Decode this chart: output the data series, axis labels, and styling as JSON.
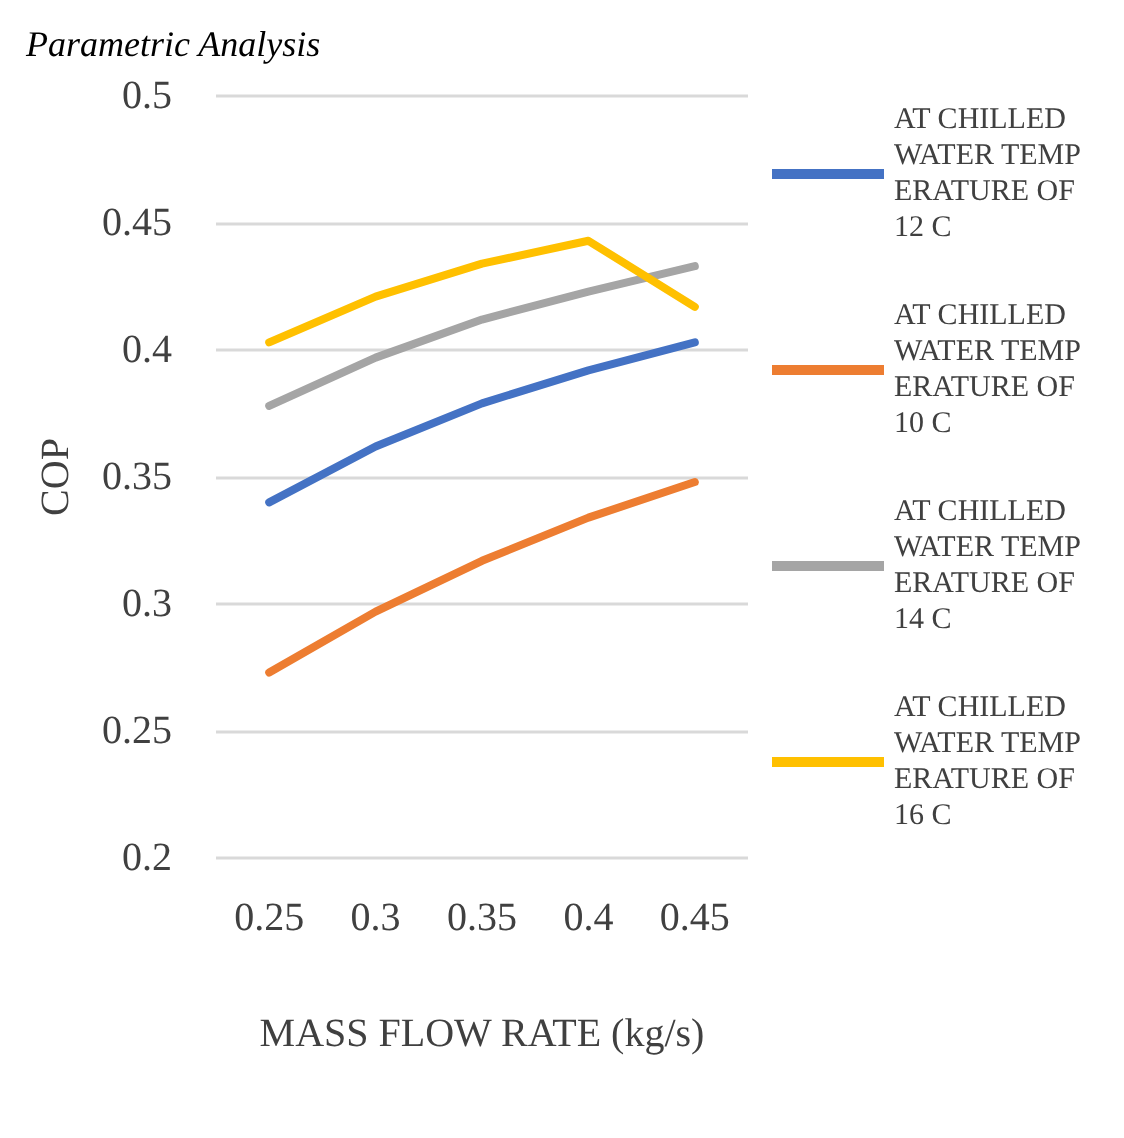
{
  "chart_data": {
    "type": "line",
    "title": "Parametric Analysis",
    "xlabel": "MASS FLOW RATE (kg/s)",
    "ylabel": "COP",
    "categories": [
      "0.25",
      "0.3",
      "0.35",
      "0.4",
      "0.45"
    ],
    "series": [
      {
        "name": "AT CHILLED WATER TEMPERATURE OF 12 C",
        "color": "#4472c4",
        "values": [
          0.34,
          0.362,
          0.379,
          0.392,
          0.403
        ]
      },
      {
        "name": "AT CHILLED WATER TEMPERATURE OF 10 C",
        "color": "#ed7d31",
        "values": [
          0.273,
          0.297,
          0.317,
          0.334,
          0.348
        ]
      },
      {
        "name": "AT CHILLED WATER TEMPERATURE OF 14 C",
        "color": "#a5a5a5",
        "values": [
          0.378,
          0.397,
          0.412,
          0.423,
          0.433
        ]
      },
      {
        "name": "AT CHILLED WATER TEMPERATURE OF 16 C",
        "color": "#ffc000",
        "values": [
          0.403,
          0.421,
          0.434,
          0.443,
          0.417
        ]
      }
    ],
    "ylim": [
      0.2,
      0.5
    ],
    "yticks": [
      0.2,
      0.25,
      0.3,
      0.35,
      0.4,
      0.45,
      0.5
    ],
    "grid": "y",
    "legend": "right",
    "marker": "none",
    "line_style": "solid"
  }
}
